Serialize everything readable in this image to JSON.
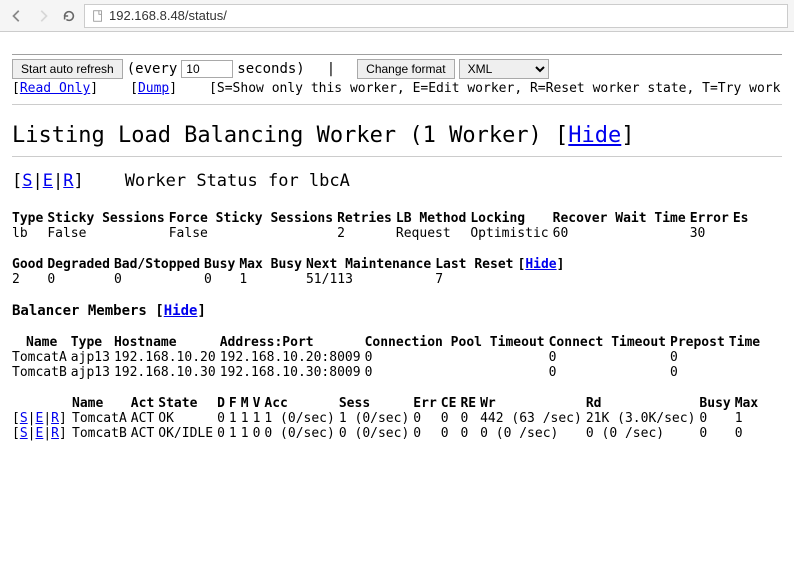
{
  "browser": {
    "url": "192.168.8.48/status/"
  },
  "toolbar": {
    "start_refresh": "Start auto refresh",
    "every": "(every",
    "interval": "10",
    "seconds": "seconds)",
    "change_format": "Change format",
    "format_options": [
      "XML"
    ],
    "selected_format": "XML"
  },
  "toplinks": {
    "read_only": "Read Only",
    "dump": "Dump",
    "legend": "[S=Show only this worker, E=Edit worker, R=Reset worker state, T=Try work"
  },
  "heading": {
    "title_prefix": "Listing Load Balancing Worker (1 Worker) [",
    "hide": "Hide",
    "title_suffix": "]"
  },
  "status_header": {
    "ser_s": "S",
    "ser_e": "E",
    "ser_r": "R",
    "title": "Worker Status for lbcA"
  },
  "worker_table": {
    "headers": [
      "Type",
      "Sticky Sessions",
      "Force Sticky Sessions",
      "Retries",
      "LB Method",
      "Locking",
      "Recover Wait Time",
      "Error",
      "Es"
    ],
    "row": [
      "lb",
      "False",
      "False",
      "2",
      "Request",
      "Optimistic",
      "60",
      "30",
      ""
    ]
  },
  "health_table": {
    "headers": [
      "Good",
      "Degraded",
      "Bad/Stopped",
      "Busy",
      "Max Busy",
      "Next Maintenance",
      "Last Reset"
    ],
    "hide_label": "Hide",
    "row": [
      "2",
      "0",
      "0",
      "0",
      "1",
      "51/113",
      "7"
    ]
  },
  "members_heading": {
    "label": "Balancer Members [",
    "hide": "Hide",
    "suffix": "]"
  },
  "members_table": {
    "headers": [
      "Name",
      "Type",
      "Hostname",
      "Address:Port",
      "Connection Pool Timeout",
      "Connect Timeout",
      "Prepost",
      "Time"
    ],
    "rows": [
      [
        "TomcatA",
        "ajp13",
        "192.168.10.20",
        "192.168.10.20:8009",
        "0",
        "0",
        "0",
        ""
      ],
      [
        "TomcatB",
        "ajp13",
        "192.168.10.30",
        "192.168.10.30:8009",
        "0",
        "0",
        "0",
        ""
      ]
    ]
  },
  "stats_table": {
    "headers": [
      "",
      "Name",
      "Act",
      "State",
      "D",
      "F",
      "M",
      "V",
      "Acc",
      "Sess",
      "Err",
      "CE",
      "RE",
      "Wr",
      "Rd",
      "Busy",
      "Max"
    ],
    "rows": [
      {
        "ser": true,
        "cells": [
          "TomcatA",
          "ACT",
          "OK",
          "0",
          "1",
          "1",
          "1",
          "1 (0/sec)",
          "1 (0/sec)",
          "0",
          "0",
          "0",
          "442 (63 /sec)",
          "21K (3.0K/sec)",
          "0",
          "1"
        ]
      },
      {
        "ser": true,
        "cells": [
          "TomcatB",
          "ACT",
          "OK/IDLE",
          "0",
          "1",
          "1",
          "0",
          "0 (0/sec)",
          "0 (0/sec)",
          "0",
          "0",
          "0",
          "0 (0 /sec)",
          "0 (0 /sec)",
          "0",
          "0"
        ]
      }
    ]
  }
}
